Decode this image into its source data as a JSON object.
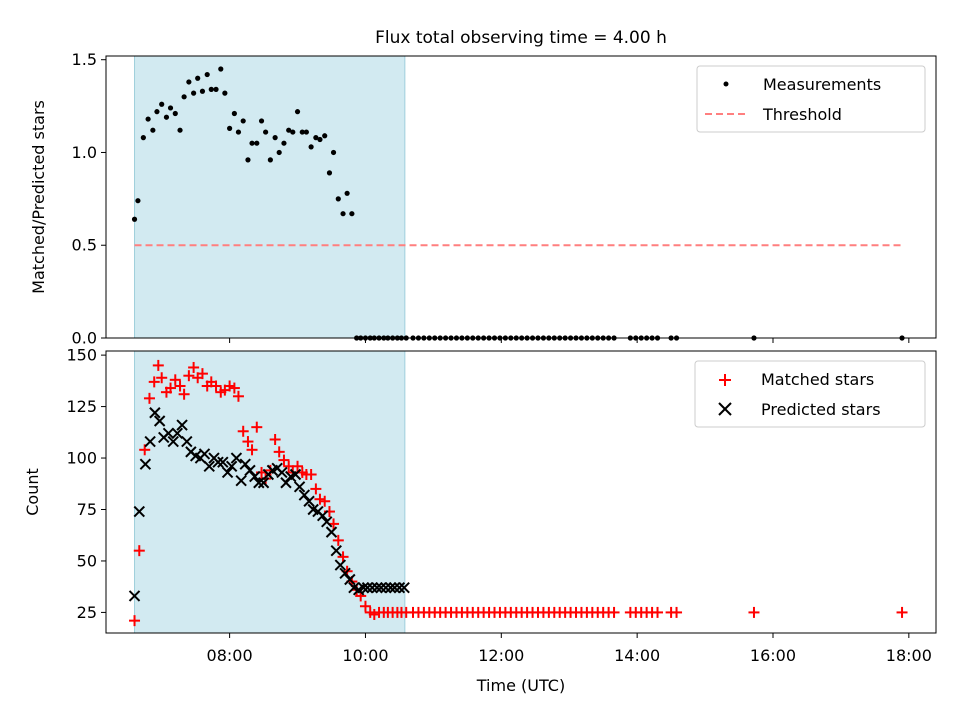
{
  "figure": {
    "title": "Flux total observing time = 4.00 h"
  },
  "chart_data": [
    {
      "type": "scatter",
      "ylabel": "Matched/Predicted stars",
      "xlim": [
        6.18,
        18.4
      ],
      "ylim": [
        0,
        1.52
      ],
      "yticks": [
        0.0,
        0.5,
        1.0,
        1.5
      ],
      "ytick_labels": [
        "0.0",
        "0.5",
        "1.0",
        "1.5"
      ],
      "grid": false,
      "legend_position": "upper right",
      "shaded_interval": {
        "from": 6.6,
        "to": 10.58,
        "color": "#add8e6"
      },
      "series": [
        {
          "name": "Measurements",
          "marker": "dot",
          "color": "#000000",
          "x": [
            6.6,
            6.65,
            6.73,
            6.8,
            6.87,
            6.93,
            7.0,
            7.07,
            7.13,
            7.2,
            7.27,
            7.33,
            7.4,
            7.47,
            7.53,
            7.6,
            7.67,
            7.73,
            7.8,
            7.87,
            7.93,
            8.0,
            8.07,
            8.13,
            8.2,
            8.27,
            8.33,
            8.4,
            8.47,
            8.53,
            8.6,
            8.67,
            8.73,
            8.8,
            8.87,
            8.93,
            9.0,
            9.07,
            9.13,
            9.2,
            9.27,
            9.33,
            9.4,
            9.47,
            9.53,
            9.6,
            9.67,
            9.73,
            9.8,
            9.87,
            9.93,
            10.0,
            10.07,
            10.13,
            10.2,
            10.27,
            10.33,
            10.4,
            10.47,
            10.53,
            10.6,
            10.7,
            10.78,
            10.86,
            10.94,
            11.02,
            11.1,
            11.18,
            11.26,
            11.34,
            11.42,
            11.5,
            11.58,
            11.66,
            11.74,
            11.82,
            11.9,
            11.98,
            12.06,
            12.14,
            12.22,
            12.3,
            12.38,
            12.46,
            12.54,
            12.62,
            12.7,
            12.78,
            12.86,
            12.94,
            13.02,
            13.1,
            13.18,
            13.26,
            13.34,
            13.42,
            13.5,
            13.58,
            13.66,
            13.9,
            13.98,
            14.06,
            14.14,
            14.22,
            14.3,
            14.5,
            14.58,
            15.72,
            17.9
          ],
          "y": [
            0.64,
            0.74,
            1.08,
            1.18,
            1.12,
            1.22,
            1.26,
            1.19,
            1.24,
            1.21,
            1.12,
            1.3,
            1.38,
            1.32,
            1.4,
            1.33,
            1.42,
            1.34,
            1.34,
            1.45,
            1.32,
            1.13,
            1.21,
            1.11,
            1.17,
            0.96,
            1.05,
            1.05,
            1.17,
            1.11,
            0.96,
            1.08,
            1.0,
            1.05,
            1.12,
            1.11,
            1.22,
            1.11,
            1.11,
            1.03,
            1.08,
            1.07,
            1.09,
            0.89,
            1.0,
            0.75,
            0.67,
            0.78,
            0.67,
            0,
            0,
            0,
            0,
            0,
            0,
            0,
            0,
            0,
            0,
            0,
            0,
            0,
            0,
            0,
            0,
            0,
            0,
            0,
            0,
            0,
            0,
            0,
            0,
            0,
            0,
            0,
            0,
            0,
            0,
            0,
            0,
            0,
            0,
            0,
            0,
            0,
            0,
            0,
            0,
            0,
            0,
            0,
            0,
            0,
            0,
            0,
            0,
            0,
            0,
            0,
            0,
            0,
            0,
            0,
            0,
            0,
            0,
            0,
            0
          ]
        },
        {
          "name": "Threshold",
          "line_style": "dashed",
          "color": "#ff7f7f",
          "x": [
            6.6,
            17.9
          ],
          "y": [
            0.5,
            0.5
          ]
        }
      ]
    },
    {
      "type": "scatter",
      "xlabel": "Time (UTC)",
      "ylabel": "Count",
      "xlim": [
        6.18,
        18.4
      ],
      "ylim": [
        15,
        152
      ],
      "yticks": [
        25,
        50,
        75,
        100,
        125,
        150
      ],
      "ytick_labels": [
        "25",
        "50",
        "75",
        "100",
        "125",
        "150"
      ],
      "xticks": [
        8,
        10,
        12,
        14,
        16,
        18
      ],
      "xtick_labels": [
        "08:00",
        "10:00",
        "12:00",
        "14:00",
        "16:00",
        "18:00"
      ],
      "grid": false,
      "legend_position": "upper right",
      "shaded_interval": {
        "from": 6.6,
        "to": 10.58,
        "color": "#add8e6"
      },
      "series": [
        {
          "name": "Matched stars",
          "marker": "plus",
          "color": "#ff0000",
          "x": [
            6.6,
            6.67,
            6.75,
            6.82,
            6.89,
            6.95,
            7.0,
            7.07,
            7.13,
            7.2,
            7.27,
            7.33,
            7.4,
            7.47,
            7.53,
            7.6,
            7.67,
            7.73,
            7.8,
            7.87,
            7.93,
            8.0,
            8.07,
            8.13,
            8.2,
            8.27,
            8.33,
            8.4,
            8.47,
            8.53,
            8.6,
            8.67,
            8.73,
            8.8,
            8.87,
            8.93,
            9.0,
            9.07,
            9.13,
            9.2,
            9.27,
            9.33,
            9.4,
            9.47,
            9.53,
            9.6,
            9.67,
            9.73,
            9.8,
            9.87,
            9.93,
            10.0,
            10.07,
            10.13,
            10.2,
            10.27,
            10.33,
            10.4,
            10.47,
            10.53,
            10.6,
            10.7,
            10.78,
            10.86,
            10.94,
            11.02,
            11.1,
            11.18,
            11.26,
            11.34,
            11.42,
            11.5,
            11.58,
            11.66,
            11.74,
            11.82,
            11.9,
            11.98,
            12.06,
            12.14,
            12.22,
            12.3,
            12.38,
            12.46,
            12.54,
            12.62,
            12.7,
            12.78,
            12.86,
            12.94,
            13.02,
            13.1,
            13.18,
            13.26,
            13.34,
            13.42,
            13.5,
            13.58,
            13.66,
            13.9,
            13.98,
            14.06,
            14.14,
            14.22,
            14.3,
            14.5,
            14.58,
            15.72,
            17.9
          ],
          "y": [
            21,
            55,
            104,
            129,
            137,
            145,
            139,
            132,
            134,
            138,
            135,
            131,
            140,
            144,
            139,
            141,
            135,
            137,
            135,
            132,
            133,
            135,
            134,
            130,
            113,
            108,
            104,
            115,
            93,
            90,
            94,
            109,
            103,
            99,
            96,
            93,
            96,
            93,
            92,
            92,
            85,
            80,
            79,
            74,
            68,
            60,
            52,
            45,
            40,
            36,
            33,
            28,
            25,
            24,
            25,
            25,
            25,
            25,
            25,
            25,
            25,
            25,
            25,
            25,
            25,
            25,
            25,
            25,
            25,
            25,
            25,
            25,
            25,
            25,
            25,
            25,
            25,
            25,
            25,
            25,
            25,
            25,
            25,
            25,
            25,
            25,
            25,
            25,
            25,
            25,
            25,
            25,
            25,
            25,
            25,
            25,
            25,
            25,
            25,
            25,
            25,
            25,
            25,
            25,
            25,
            25,
            25,
            25,
            25
          ]
        },
        {
          "name": "Predicted stars",
          "marker": "x",
          "color": "#000000",
          "x": [
            6.6,
            6.67,
            6.76,
            6.83,
            6.9,
            6.97,
            7.03,
            7.1,
            7.17,
            7.23,
            7.3,
            7.37,
            7.43,
            7.5,
            7.57,
            7.63,
            7.7,
            7.77,
            7.83,
            7.9,
            7.97,
            8.03,
            8.1,
            8.17,
            8.23,
            8.3,
            8.37,
            8.43,
            8.5,
            8.57,
            8.63,
            8.7,
            8.77,
            8.83,
            8.9,
            8.97,
            9.03,
            9.1,
            9.17,
            9.23,
            9.3,
            9.37,
            9.43,
            9.5,
            9.57,
            9.63,
            9.7,
            9.77,
            9.83,
            9.9,
            9.97,
            10.03,
            10.1,
            10.17,
            10.23,
            10.3,
            10.37,
            10.43,
            10.5,
            10.57
          ],
          "y": [
            33,
            74,
            97,
            108,
            122,
            118,
            110,
            112,
            108,
            112,
            116,
            108,
            103,
            101,
            100,
            102,
            96,
            100,
            98,
            98,
            93,
            96,
            100,
            89,
            97,
            94,
            91,
            88,
            88,
            92,
            94,
            95,
            93,
            88,
            91,
            92,
            86,
            82,
            79,
            75,
            74,
            72,
            69,
            64,
            55,
            48,
            44,
            41,
            37,
            36,
            37,
            37,
            37,
            37,
            37,
            37,
            37,
            37,
            37,
            37
          ]
        }
      ]
    }
  ]
}
